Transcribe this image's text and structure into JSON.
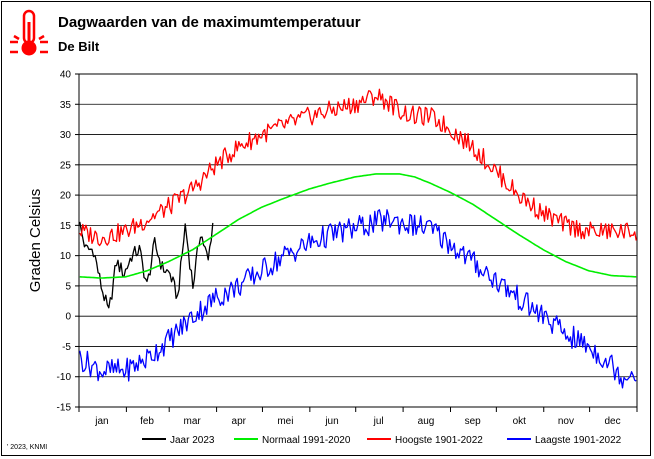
{
  "header": {
    "title": "Dagwaarden van de maximumtemperatuur",
    "subtitle": "De Bilt",
    "icon": "thermometer-icon",
    "icon_color": "#ff0000"
  },
  "credit": "' 2023, KNMI",
  "chart_data": {
    "type": "line",
    "title": "Dagwaarden van de maximumtemperatuur",
    "subtitle": "De Bilt",
    "ylabel": "Graden Celsius",
    "xlabel": "",
    "ylim": [
      -15,
      40
    ],
    "yticks": [
      40,
      35,
      30,
      25,
      20,
      15,
      10,
      5,
      0,
      -5,
      -10,
      -15
    ],
    "month_labels": [
      "jan",
      "feb",
      "mar",
      "apr",
      "mei",
      "jun",
      "jul",
      "aug",
      "sep",
      "okt",
      "nov",
      "dec"
    ],
    "grid": true,
    "legend_position": "bottom",
    "series": [
      {
        "name": "Jaar 2023",
        "color": "#000000",
        "x": [
          1,
          5,
          10,
          15,
          20,
          25,
          30,
          35,
          40,
          45,
          50,
          55,
          60,
          65,
          70,
          75,
          80,
          85,
          88
        ],
        "values": [
          15,
          11,
          11,
          5,
          0.5,
          9,
          7,
          10,
          11,
          5,
          12,
          8,
          7,
          3,
          15,
          5,
          14,
          9,
          15.5
        ]
      },
      {
        "name": "Normaal 1991-2020",
        "color": "#00ee00",
        "x": [
          1,
          15,
          31,
          45,
          59,
          75,
          90,
          105,
          120,
          135,
          151,
          165,
          181,
          195,
          210,
          220,
          230,
          243,
          258,
          273,
          288,
          304,
          319,
          334,
          349,
          365
        ],
        "values": [
          6.5,
          6.3,
          6.5,
          7.5,
          9,
          11,
          13.5,
          16,
          18,
          19.5,
          21,
          22,
          23,
          23.5,
          23.5,
          23,
          22,
          20.5,
          18.5,
          16,
          13.5,
          11,
          9,
          7.5,
          6.7,
          6.5
        ]
      },
      {
        "name": "Hoogste 1901-2022",
        "color": "#ff0000",
        "x": [
          1,
          15,
          31,
          45,
          59,
          75,
          90,
          105,
          120,
          135,
          151,
          165,
          181,
          195,
          205,
          210,
          220,
          230,
          243,
          258,
          273,
          288,
          304,
          319,
          334,
          349,
          365
        ],
        "values": [
          14,
          13,
          14,
          16,
          18,
          21,
          25,
          28,
          30,
          31.5,
          33,
          34,
          35,
          36.5,
          35,
          34,
          33,
          33,
          31,
          28,
          24,
          20,
          17,
          15,
          14,
          14,
          14
        ]
      },
      {
        "name": "Laagste 1901-2022",
        "color": "#0000ff",
        "x": [
          1,
          15,
          31,
          45,
          59,
          75,
          90,
          105,
          120,
          135,
          151,
          165,
          181,
          195,
          205,
          210,
          220,
          230,
          243,
          258,
          273,
          288,
          304,
          319,
          334,
          349,
          355,
          365
        ],
        "values": [
          -7,
          -9,
          -9,
          -7,
          -4,
          0,
          3,
          5,
          7.5,
          10,
          12,
          13.5,
          14.5,
          15.5,
          16,
          15.5,
          15,
          14.5,
          12,
          9,
          6,
          3,
          0,
          -3,
          -5,
          -8,
          -10,
          -9
        ]
      }
    ]
  }
}
